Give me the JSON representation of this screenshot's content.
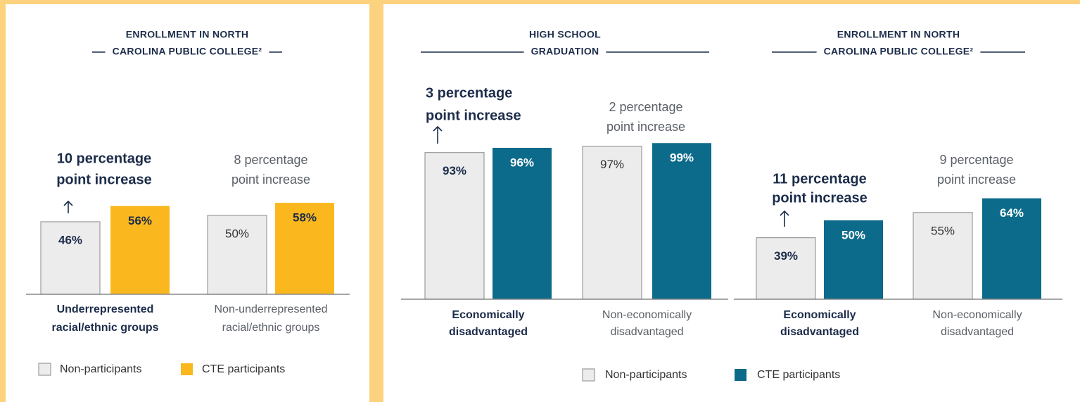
{
  "chart_data": [
    {
      "type": "bar",
      "title": [
        "ENROLLMENT IN NORTH",
        "CAROLINA PUBLIC COLLEGE²"
      ],
      "categories": [
        [
          "Underrepresented",
          "racial/ethnic groups"
        ],
        [
          "Non-underrepresented",
          "racial/ethnic groups"
        ]
      ],
      "annotations": [
        [
          "10 percentage",
          "point increase"
        ],
        [
          "8 percentage",
          "point increase"
        ]
      ],
      "series": [
        {
          "name": "Non-participants",
          "color": "#ececec",
          "values": [
            46,
            50
          ],
          "value_labels": [
            "46%",
            "50%"
          ]
        },
        {
          "name": "CTE participants",
          "color": "#fbb81e",
          "values": [
            56,
            58
          ],
          "value_labels": [
            "56%",
            "58%"
          ]
        }
      ]
    },
    {
      "type": "bar",
      "title": [
        "HIGH SCHOOL",
        "GRADUATION"
      ],
      "categories": [
        [
          "Economically",
          "disadvantaged"
        ],
        [
          "Non-economically",
          "disadvantaged"
        ]
      ],
      "annotations": [
        [
          "3 percentage",
          "point increase"
        ],
        [
          "2 percentage",
          "point increase"
        ]
      ],
      "series": [
        {
          "name": "Non-participants",
          "color": "#ececec",
          "values": [
            93,
            97
          ],
          "value_labels": [
            "93%",
            "97%"
          ]
        },
        {
          "name": "CTE participants",
          "color": "#0c6a8a",
          "values": [
            96,
            99
          ],
          "value_labels": [
            "96%",
            "99%"
          ]
        }
      ]
    },
    {
      "type": "bar",
      "title": [
        "ENROLLMENT IN NORTH",
        "CAROLINA PUBLIC COLLEGE²"
      ],
      "categories": [
        [
          "Economically",
          "disadvantaged"
        ],
        [
          "Non-economically",
          "disadvantaged"
        ]
      ],
      "annotations": [
        [
          "11 percentage",
          "point increase"
        ],
        [
          "9 percentage",
          "point increase"
        ]
      ],
      "series": [
        {
          "color": "#ececec",
          "values": [
            39,
            55
          ],
          "value_labels": [
            "39%",
            "55%"
          ]
        },
        {
          "color": "#0c6a8a",
          "values": [
            50,
            64
          ],
          "value_labels": [
            "50%",
            "64%"
          ]
        }
      ]
    }
  ]
}
